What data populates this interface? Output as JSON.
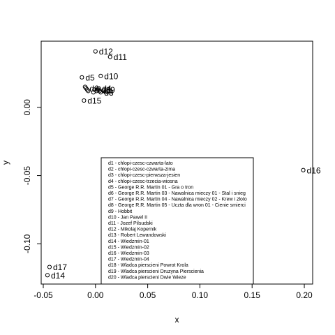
{
  "chart_data": {
    "type": "scatter",
    "xlabel": "x",
    "ylabel": "y",
    "xlim": [
      -0.052,
      0.208
    ],
    "ylim": [
      -0.1295,
      0.0485
    ],
    "x_ticks": [
      -0.05,
      0.0,
      0.05,
      0.1,
      0.15,
      0.2
    ],
    "x_tick_labels": [
      "-0.05",
      "0.00",
      "0.05",
      "0.10",
      "0.15",
      "0.20"
    ],
    "y_ticks": [
      0.0,
      -0.05,
      -0.1
    ],
    "y_tick_labels": [
      "0.00",
      "-0.05",
      "-0.10"
    ],
    "points": [
      {
        "label": "d1",
        "x": 0.003,
        "y": 0.013,
        "show_label": true
      },
      {
        "label": "d2",
        "x": 0.004,
        "y": 0.012,
        "show_label": true
      },
      {
        "label": "d3",
        "x": 0.005,
        "y": 0.011,
        "show_label": true
      },
      {
        "label": "d4",
        "x": 0.003,
        "y": 0.014,
        "show_label": true
      },
      {
        "label": "d5",
        "x": -0.013,
        "y": 0.022,
        "show_label": true
      },
      {
        "label": "d6",
        "x": -0.009,
        "y": 0.014,
        "show_label": true
      },
      {
        "label": "d7",
        "x": -0.007,
        "y": 0.012,
        "show_label": false
      },
      {
        "label": "d8",
        "x": -0.008,
        "y": 0.013,
        "show_label": false
      },
      {
        "label": "d9",
        "x": -0.01,
        "y": 0.015,
        "show_label": false
      },
      {
        "label": "d10",
        "x": 0.005,
        "y": 0.023,
        "show_label": true
      },
      {
        "label": "d11",
        "x": 0.014,
        "y": 0.037,
        "show_label": true
      },
      {
        "label": "d12",
        "x": 0.0,
        "y": 0.041,
        "show_label": true
      },
      {
        "label": "d13",
        "x": -0.002,
        "y": 0.011,
        "show_label": false
      },
      {
        "label": "d14",
        "x": -0.046,
        "y": -0.123,
        "show_label": true
      },
      {
        "label": "d15",
        "x": -0.011,
        "y": 0.005,
        "show_label": true
      },
      {
        "label": "d16",
        "x": 0.199,
        "y": -0.046,
        "show_label": true
      },
      {
        "label": "d17",
        "x": -0.044,
        "y": -0.117,
        "show_label": true
      },
      {
        "label": "d18",
        "x": 0.001,
        "y": 0.012,
        "show_label": false
      },
      {
        "label": "d19",
        "x": 0.002,
        "y": 0.013,
        "show_label": true
      },
      {
        "label": "d20",
        "x": -0.001,
        "y": 0.013,
        "show_label": false
      }
    ],
    "legend": {
      "placement": "bottom-center",
      "entries": [
        "d1 - chlopi-czesc-czwarta-lato",
        "d2 - chlopi-czesc-czwarta-zima",
        "d3 - chlopi-czesc-pierwsza-jesien",
        "d4 - chlopi-czesc-trzecia-wiosna",
        "d5 - George R.R. Martin 01 - Gra o tron",
        "d6 - George R.R. Martin 03 - Nawalnica mieczy 01 - Stal i snieg",
        "d7 - George R.R. Martin 04 - Nawalnica mieczy 02 - Krew i zloto",
        "d8 - George R.R. Martin 05 - Uczta dla wron 01 - Cienie smierci",
        "d9 - Hobbit",
        "d10 - Jan  Pawel  II",
        "d11 - Jozef  Pilsudski",
        "d12 - Mikolaj  Kopernik",
        "d13 - Robert  Lewandowski",
        "d14 - Wiedzmin-01",
        "d15 - Wiedzmin-02",
        "d16 - Wiedzmin-03",
        "d17 - Wiedzmin-04",
        "d18 - Wladca  pierscieni  Powrot  Krola",
        "d19 - Wladca  pierscieni  Druzyna  Pierscienia",
        "d20 - Wladca  pierscieni  Dwie  Wieze"
      ]
    }
  }
}
